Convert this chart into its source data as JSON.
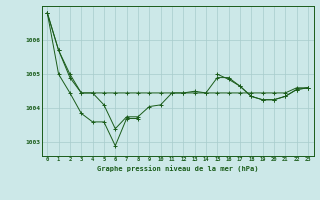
{
  "title": "Graphe pression niveau de la mer (hPa)",
  "background_color": "#cce8e8",
  "line_color": "#1a5c1a",
  "grid_color": "#a8cccc",
  "xlim": [
    -0.5,
    23.5
  ],
  "ylim": [
    1002.6,
    1007.0
  ],
  "yticks": [
    1003,
    1004,
    1005,
    1006
  ],
  "xticks": [
    0,
    1,
    2,
    3,
    4,
    5,
    6,
    7,
    8,
    9,
    10,
    11,
    12,
    13,
    14,
    15,
    16,
    17,
    18,
    19,
    20,
    21,
    22,
    23
  ],
  "series1": [
    1006.8,
    1005.7,
    1004.9,
    1004.45,
    1004.45,
    1004.45,
    1004.45,
    1004.45,
    1004.45,
    1004.45,
    1004.45,
    1004.45,
    1004.45,
    1004.45,
    1004.45,
    1004.45,
    1004.45,
    1004.45,
    1004.45,
    1004.45,
    1004.45,
    1004.45,
    1004.6,
    1004.6
  ],
  "series2": [
    1006.8,
    1005.7,
    1005.0,
    1004.45,
    1004.45,
    1004.1,
    1003.4,
    1003.75,
    1003.75,
    1004.05,
    1004.1,
    1004.45,
    1004.45,
    1004.5,
    1004.45,
    1004.9,
    1004.9,
    1004.65,
    1004.35,
    1004.25,
    1004.25,
    1004.35,
    1004.55,
    1004.6
  ],
  "series3_part1_x": [
    0,
    1,
    2,
    3,
    4,
    5,
    6,
    7,
    8
  ],
  "series3_part1_y": [
    1006.8,
    1005.0,
    1004.45,
    1003.85,
    1003.6,
    1003.6,
    1002.9,
    1003.7,
    1003.7
  ],
  "series3_part2_x": [
    15,
    16,
    17,
    18,
    19,
    20,
    21,
    22,
    23
  ],
  "series3_part2_y": [
    1005.0,
    1004.85,
    1004.65,
    1004.35,
    1004.25,
    1004.25,
    1004.35,
    1004.55,
    1004.6
  ]
}
